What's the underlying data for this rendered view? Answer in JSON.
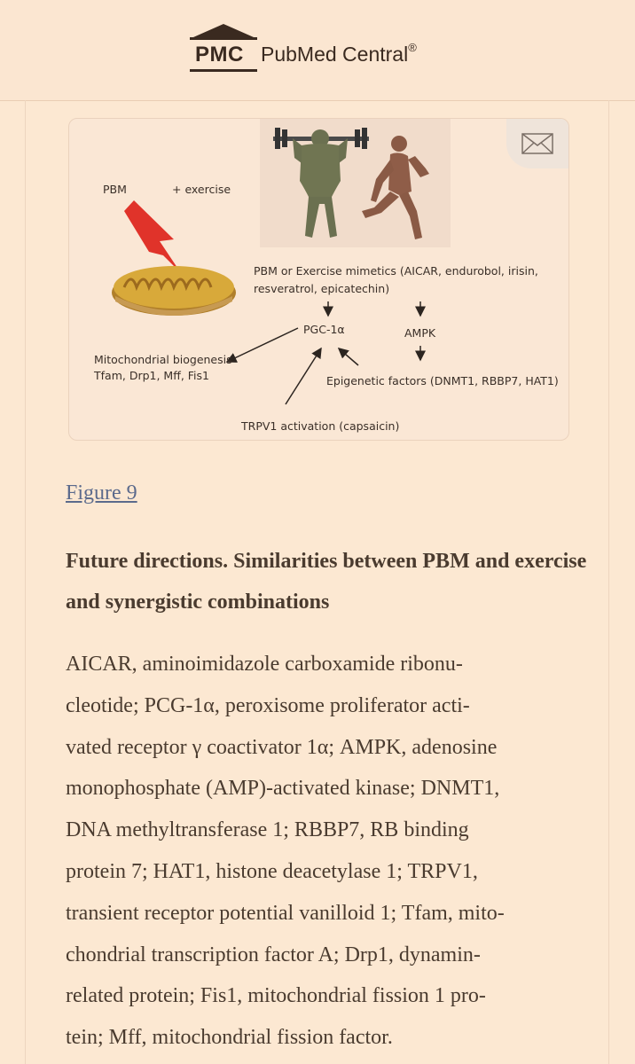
{
  "header": {
    "logo_abbr": "PMC",
    "logo_name": "PubMed Central",
    "logo_mark": "®"
  },
  "figure": {
    "labels": {
      "pbm": "PBM",
      "exercise": "+ exercise",
      "mimetics_line1": "PBM or Exercise mimetics (AICAR, endurobol, irisin,",
      "mimetics_line2": "resveratrol, epicatechin)",
      "pgc": "PGC-1α",
      "ampk": "AMPK",
      "biogenesis_line1": "Mitochondrial biogenesis",
      "biogenesis_line2": "Tfam, Drp1, Mff, Fis1",
      "epigenetic": "Epigenetic factors (DNMT1, RBBP7, HAT1)",
      "trpv1": "TRPV1 activation (capsaicin)"
    },
    "expand_icon": "envelope-icon",
    "link_text": "Figure 9",
    "title": "Future directions. Similarities between PBM and exercise and synergistic combinations",
    "caption_lines": [
      "AICAR, aminoimidazole carboxamide ribonu-",
      "cleotide; PCG-1α, peroxisome proliferator acti-",
      "vated receptor γ coactivator 1α; AMPK, adenosine",
      "monophosphate (AMP)-activated kinase; DNMT1,",
      "DNA methyltransferase 1; RBBP7, RB binding",
      "protein 7; HAT1, histone deacetylase 1; TRPV1,",
      "transient receptor potential vanilloid 1; Tfam, mito-",
      "chondrial transcription factor A; Drp1, dynamin-",
      "related protein; Fis1, mitochondrial fission 1 pro-",
      "tein; Mff, mitochondrial fission factor."
    ]
  },
  "colors": {
    "page_bg": "#fce8d2",
    "text": "#4a3b2f",
    "link": "#5b6a8c",
    "lightning": "#e0332a",
    "mitochondrion": "#d8a93a"
  }
}
